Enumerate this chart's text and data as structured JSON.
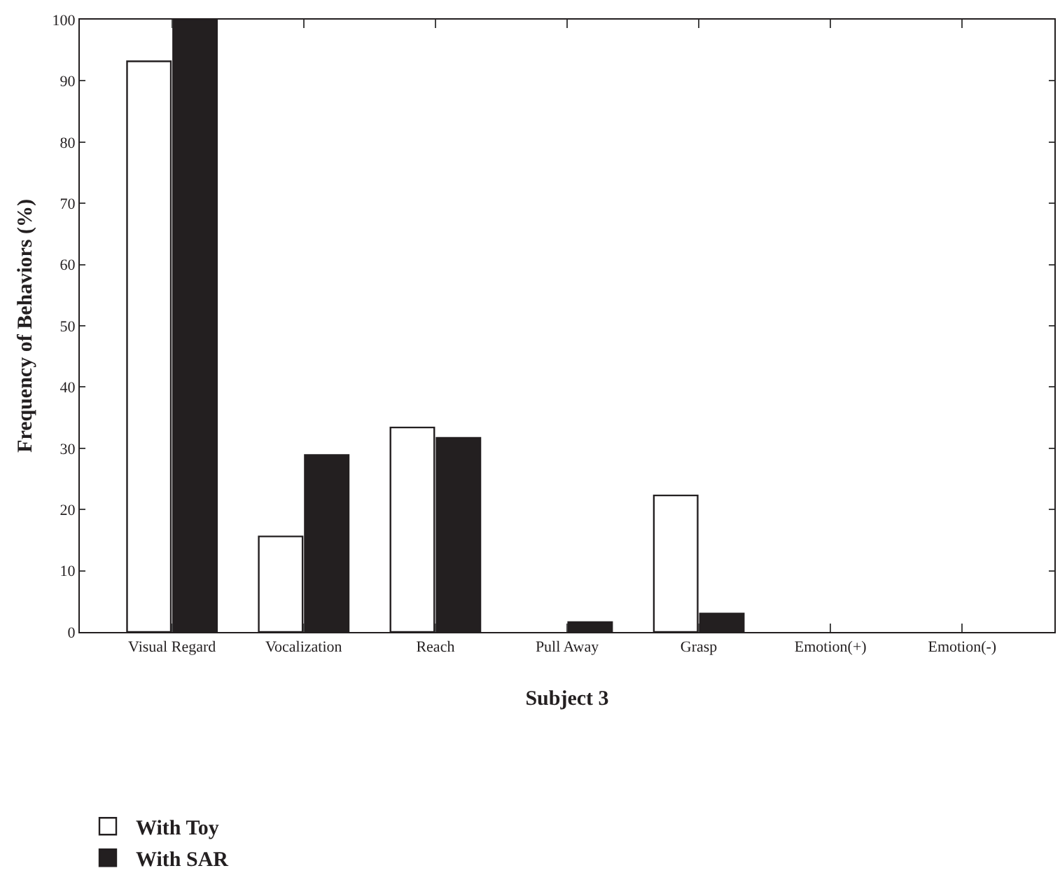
{
  "chart_data": {
    "type": "bar",
    "xlabel": "Subject 3",
    "ylabel": "Frequency of Behaviors (%)",
    "categories": [
      "Visual Regard",
      "Vocalization",
      "Reach",
      "Pull Away",
      "Grasp",
      "Emotion(+)",
      "Emotion(-)"
    ],
    "series": [
      {
        "name": "With Toy",
        "color": "#ffffff",
        "values": [
          93.2,
          15.6,
          33.4,
          0,
          22.3,
          0,
          0
        ]
      },
      {
        "name": "With SAR",
        "color": "#231f20",
        "values": [
          100,
          28.9,
          31.7,
          1.6,
          3.0,
          0,
          0
        ]
      }
    ],
    "ylim": [
      0,
      100
    ],
    "yticks": [
      0,
      10,
      20,
      30,
      40,
      50,
      60,
      70,
      80,
      90,
      100
    ],
    "legend": "bottom left"
  }
}
